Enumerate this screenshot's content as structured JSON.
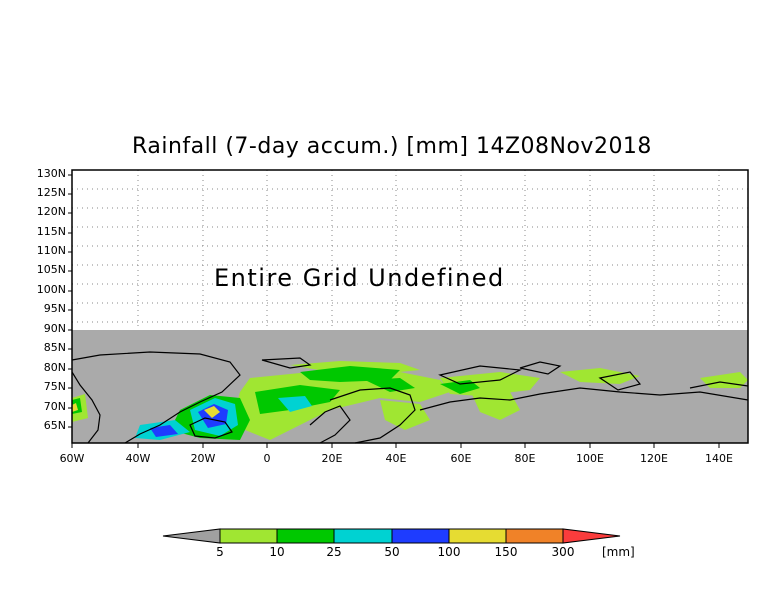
{
  "title": "Rainfall (7-day accum.) [mm] 14Z08Nov2018",
  "undefined_note": "Entire Grid Undefined",
  "lat_labels": [
    "130N",
    "125N",
    "120N",
    "115N",
    "110N",
    "105N",
    "100N",
    "95N",
    "90N",
    "85N",
    "80N",
    "75N",
    "70N",
    "65N"
  ],
  "lon_labels": [
    "60W",
    "40W",
    "20W",
    "0",
    "20E",
    "40E",
    "60E",
    "80E",
    "100E",
    "120E",
    "140E"
  ],
  "colorbar": {
    "labels": [
      "5",
      "10",
      "25",
      "50",
      "100",
      "150",
      "300"
    ],
    "unit": "[mm]",
    "colors": [
      "#a0a0a0",
      "#a0e632",
      "#00c800",
      "#00d2d2",
      "#1e3cff",
      "#e6dc32",
      "#f08228",
      "#fa3c3c"
    ]
  },
  "map": {
    "no_data_color": "#aaaaaa",
    "grid": "dotted"
  }
}
